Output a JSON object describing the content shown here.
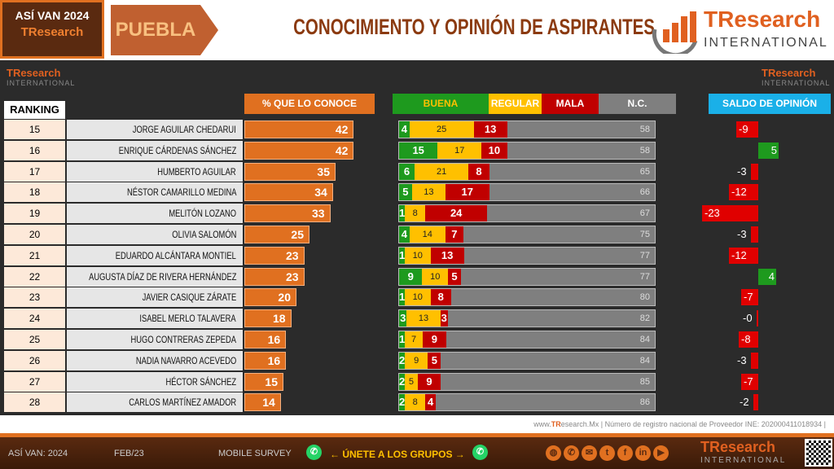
{
  "header": {
    "badge_line1": "ASÍ VAN 2024",
    "badge_line2": "TResearch",
    "state": "PUEBLA",
    "title": "CONOCIMIENTO Y OPINIÓN DE ASPIRANTES",
    "logo_main": "TResearch",
    "logo_sub": "INTERNATIONAL"
  },
  "colors": {
    "conoce": "#e07020",
    "buena": "#1e9a1e",
    "regular": "#ffc000",
    "mala": "#c00000",
    "nc": "#7f7f7f",
    "saldo_header": "#1ab0e8"
  },
  "chart_data": {
    "type": "bar",
    "column_headers": {
      "ranking": "RANKING",
      "conoce": "% QUE LO CONOCE",
      "buena": "BUENA",
      "regular": "REGULAR",
      "mala": "MALA",
      "nc": "N.C.",
      "saldo": "SALDO DE OPINIÓN"
    },
    "rows": [
      {
        "rank": "15",
        "name": "JORGE AGUILAR CHEDARUI",
        "conoce": 42,
        "buena": 4,
        "regular": 25,
        "mala": 13,
        "nc": 58,
        "saldo": -9
      },
      {
        "rank": "16",
        "name": "ENRIQUE CÁRDENAS SÁNCHEZ",
        "conoce": 42,
        "buena": 15,
        "regular": 17,
        "mala": 10,
        "nc": 58,
        "saldo": 5
      },
      {
        "rank": "17",
        "name": "HUMBERTO AGUILAR",
        "conoce": 35,
        "buena": 6,
        "regular": 21,
        "mala": 8,
        "nc": 65,
        "saldo": -3
      },
      {
        "rank": "18",
        "name": "NÉSTOR CAMARILLO MEDINA",
        "conoce": 34,
        "buena": 5,
        "regular": 13,
        "mala": 17,
        "nc": 66,
        "saldo": -12
      },
      {
        "rank": "19",
        "name": "MELITÓN LOZANO",
        "conoce": 33,
        "buena": 1,
        "regular": 8,
        "mala": 24,
        "nc": 67,
        "saldo": -23
      },
      {
        "rank": "20",
        "name": "OLIVIA SALOMÓN",
        "conoce": 25,
        "buena": 4,
        "regular": 14,
        "mala": 7,
        "nc": 75,
        "saldo": -3
      },
      {
        "rank": "21",
        "name": "EDUARDO ALCÁNTARA MONTIEL",
        "conoce": 23,
        "buena": 1,
        "regular": 10,
        "mala": 13,
        "nc": 77,
        "saldo": -12
      },
      {
        "rank": "22",
        "name": "AUGUSTA DÍAZ DE RIVERA HERNÁNDEZ",
        "conoce": 23,
        "buena": 9,
        "regular": 10,
        "mala": 5,
        "nc": 77,
        "saldo": 4
      },
      {
        "rank": "23",
        "name": "JAVIER CASIQUE ZÁRATE",
        "conoce": 20,
        "buena": 1,
        "regular": 10,
        "mala": 8,
        "nc": 80,
        "saldo": -7
      },
      {
        "rank": "24",
        "name": "ISABEL MERLO TALAVERA",
        "conoce": 18,
        "buena": 3,
        "regular": 13,
        "mala": 3,
        "nc": 82,
        "saldo": "-0"
      },
      {
        "rank": "25",
        "name": "HUGO CONTRERAS ZEPEDA",
        "conoce": 16,
        "buena": 1,
        "regular": 7,
        "mala": 9,
        "nc": 84,
        "saldo": -8
      },
      {
        "rank": "26",
        "name": "NADIA NAVARRO ACEVEDO",
        "conoce": 16,
        "buena": 2,
        "regular": 9,
        "mala": 5,
        "nc": 84,
        "saldo": -3
      },
      {
        "rank": "27",
        "name": "HÉCTOR SÁNCHEZ",
        "conoce": 15,
        "buena": 2,
        "regular": 5,
        "mala": 9,
        "nc": 85,
        "saldo": -7
      },
      {
        "rank": "28",
        "name": "CARLOS MARTÍNEZ AMADOR",
        "conoce": 14,
        "buena": 2,
        "regular": 8,
        "mala": 4,
        "nc": 86,
        "saldo": -2
      }
    ]
  },
  "footer": {
    "web_brand": "TR",
    "web_rest": "esearch.Mx",
    "registro": " | Número de registro nacional de Proveedor INE: 202000411018934 |",
    "left": "ASÍ VAN: 2024",
    "date": "FEB/23",
    "survey": "MOBILE SURVEY",
    "groups": "← ÚNETE A LOS GRUPOS →",
    "social_icons": [
      "globe-icon",
      "phone-icon",
      "email-icon",
      "twitter-icon",
      "facebook-icon",
      "linkedin-icon",
      "youtube-icon"
    ],
    "logo_main": "TResearch",
    "logo_sub": "INTERNATIONAL"
  }
}
